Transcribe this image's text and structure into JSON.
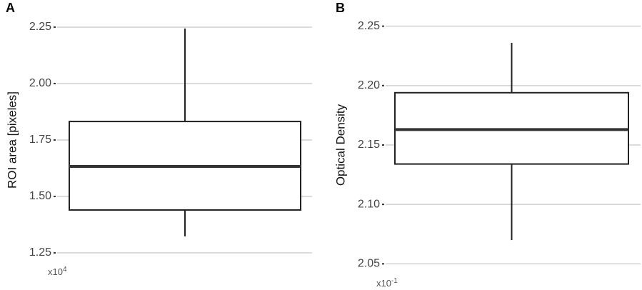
{
  "chart_data": [
    {
      "type": "box",
      "panel_label": "A",
      "y_label": "ROI area [pixeles]",
      "multiplier": {
        "base": "x10",
        "exponent": "4"
      },
      "stats": {
        "min": 1.323,
        "q1": 1.44,
        "median": 1.633,
        "q3": 1.832,
        "max": 2.244
      },
      "ylim": [
        1.22,
        2.28
      ],
      "yticks": [
        1.25,
        {
          "value": 1.5,
          "label": "1.50"
        },
        1.75,
        {
          "value": 2.0,
          "label": "2.00"
        },
        2.25
      ],
      "grid": true,
      "color": "#ffffff"
    },
    {
      "type": "box",
      "panel_label": "B",
      "y_label": "Optical Density",
      "multiplier": {
        "base": "x10",
        "exponent": "-1"
      },
      "stats": {
        "min": 2.07,
        "q1": 2.134,
        "median": 2.163,
        "q3": 2.194,
        "max": 2.236
      },
      "ylim": [
        2.04,
        2.26
      ],
      "yticks": [
        2.05,
        {
          "value": 2.1,
          "label": "2.10"
        },
        2.15,
        {
          "value": 2.2,
          "label": "2.20"
        },
        2.25
      ],
      "grid": true,
      "color": "#ffffff"
    }
  ]
}
